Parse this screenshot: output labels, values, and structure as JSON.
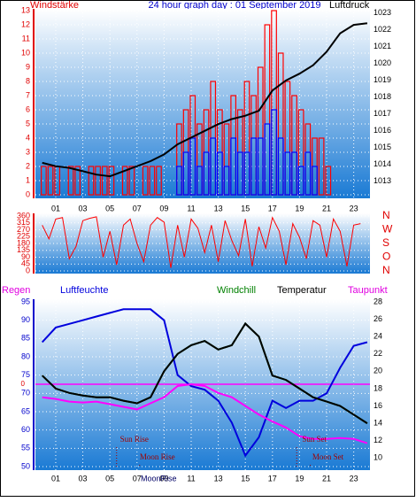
{
  "chart_data": [
    {
      "type": "bar_line",
      "title": "24 hour graph day : 01 September 2019",
      "ylabel": "Windstärke",
      "xlim": [
        -0.5,
        24.2
      ],
      "xticks": [
        {
          "value": 1,
          "label": "01"
        },
        {
          "value": 3,
          "label": "03"
        },
        {
          "value": 5,
          "label": "05"
        },
        {
          "value": 7,
          "label": "07"
        },
        {
          "value": 9,
          "label": "09"
        },
        {
          "value": 11,
          "label": "11"
        },
        {
          "value": 13,
          "label": "13"
        },
        {
          "value": 15,
          "label": "15"
        },
        {
          "value": 17,
          "label": "17"
        },
        {
          "value": 19,
          "label": "19"
        },
        {
          "value": 21,
          "label": "21"
        },
        {
          "value": 23,
          "label": "23"
        }
      ],
      "ylim": [
        0,
        13
      ],
      "yticks": [
        0,
        1,
        2,
        3,
        4,
        5,
        6,
        7,
        8,
        9,
        10,
        11,
        12,
        13
      ],
      "y2lim": [
        1012.2,
        1023.15
      ],
      "y2ticks": [
        1013,
        1014,
        1015,
        1016,
        1017,
        1018,
        1019,
        1020,
        1021,
        1022,
        1023
      ],
      "grid": true,
      "series": [
        {
          "color": "#ff0000",
          "style": "bar",
          "x": [
            0,
            0.5,
            1,
            1.5,
            2,
            2.5,
            3,
            3.5,
            4,
            4.5,
            5,
            5.5,
            6,
            6.5,
            7,
            7.5,
            8,
            8.5,
            9,
            9.5,
            10,
            10.5,
            11,
            11.5,
            12,
            12.5,
            13,
            13.5,
            14,
            14.5,
            15,
            15.5,
            16,
            16.5,
            17,
            17.5,
            18,
            18.5,
            19,
            19.5,
            20,
            20.5,
            21,
            21.5,
            22,
            22.5,
            23,
            23.5
          ],
          "values": [
            2,
            2,
            2,
            0,
            2,
            2,
            0,
            2,
            2,
            2,
            2,
            0,
            2,
            2,
            0,
            2,
            2,
            2,
            0,
            0,
            5,
            6,
            7,
            5,
            6,
            8,
            6,
            5,
            7,
            6,
            8,
            7,
            9,
            12,
            13,
            10,
            8,
            7,
            6,
            5,
            4,
            4,
            2,
            0,
            0,
            0,
            0,
            0
          ]
        },
        {
          "color": "#0000ff",
          "style": "bar",
          "x": [
            0,
            0.5,
            1,
            1.5,
            2,
            2.5,
            3,
            3.5,
            4,
            4.5,
            5,
            5.5,
            6,
            6.5,
            7,
            7.5,
            8,
            8.5,
            9,
            9.5,
            10,
            10.5,
            11,
            11.5,
            12,
            12.5,
            13,
            13.5,
            14,
            14.5,
            15,
            15.5,
            16,
            16.5,
            17,
            17.5,
            18,
            18.5,
            19,
            19.5,
            20,
            20.5,
            21,
            21.5,
            22,
            22.5,
            23,
            23.5
          ],
          "values": [
            0,
            0,
            0,
            0,
            0,
            0,
            0,
            0,
            0,
            0,
            0,
            0,
            0,
            0,
            0,
            0,
            0,
            0,
            0,
            0,
            2,
            3,
            4,
            2,
            3,
            4,
            3,
            2,
            4,
            3,
            3,
            4,
            4,
            5,
            6,
            4,
            3,
            3,
            2,
            3,
            2,
            0,
            0,
            0,
            0,
            0,
            0,
            0
          ]
        },
        {
          "name": "Luftdruck",
          "color": "#000000",
          "axis": "y2",
          "style": "line",
          "x": [
            0,
            1,
            2,
            3,
            4,
            5,
            6,
            7,
            8,
            9,
            10,
            11,
            12,
            13,
            14,
            15,
            16,
            17,
            18,
            19,
            20,
            21,
            22,
            23,
            24
          ],
          "values": [
            1014.1,
            1013.9,
            1013.8,
            1013.6,
            1013.4,
            1013.3,
            1013.6,
            1013.9,
            1014.2,
            1014.6,
            1015.2,
            1015.6,
            1016.0,
            1016.4,
            1016.7,
            1016.9,
            1017.2,
            1018.4,
            1019.0,
            1019.4,
            1019.9,
            1020.7,
            1021.8,
            1022.3,
            1022.4
          ]
        }
      ]
    },
    {
      "type": "line",
      "xlim": [
        -0.5,
        24.2
      ],
      "ylim": [
        0,
        360
      ],
      "yticks": [
        0,
        45,
        90,
        135,
        180,
        225,
        270,
        315,
        360
      ],
      "y2lim": [
        0,
        360
      ],
      "y2ticks": [
        {
          "value": 360,
          "label": "N"
        },
        {
          "value": 270,
          "label": "W"
        },
        {
          "value": 180,
          "label": "S"
        },
        {
          "value": 90,
          "label": "O"
        },
        {
          "value": 0,
          "label": "N"
        }
      ],
      "grid": true,
      "series": [
        {
          "color": "#ff0000",
          "style": "line",
          "x": [
            0,
            0.5,
            1,
            1.5,
            2,
            2.5,
            3,
            3.5,
            4,
            4.5,
            5,
            5.5,
            6,
            6.5,
            7,
            7.5,
            8,
            8.5,
            9,
            9.5,
            10,
            10.5,
            11,
            11.5,
            12,
            12.5,
            13,
            13.5,
            14,
            14.5,
            15,
            15.5,
            16,
            16.5,
            17,
            17.5,
            18,
            18.5,
            19,
            19.5,
            20,
            20.5,
            21,
            21.5,
            22,
            22.5,
            23,
            23.5
          ],
          "values": [
            300,
            210,
            340,
            350,
            80,
            160,
            330,
            345,
            355,
            90,
            260,
            40,
            300,
            340,
            180,
            60,
            300,
            350,
            320,
            20,
            300,
            90,
            340,
            280,
            120,
            300,
            60,
            330,
            200,
            100,
            340,
            30,
            290,
            150,
            350,
            260,
            40,
            310,
            220,
            80,
            330,
            300,
            90,
            340,
            260,
            30,
            300,
            310
          ]
        }
      ]
    },
    {
      "type": "line",
      "xlim": [
        -0.5,
        24.2
      ],
      "xticks": [
        {
          "value": 1,
          "label": "01"
        },
        {
          "value": 3,
          "label": "03"
        },
        {
          "value": 5,
          "label": "05"
        },
        {
          "value": 7,
          "label": "07"
        },
        {
          "value": 9,
          "label": "09"
        },
        {
          "value": 11,
          "label": "11"
        },
        {
          "value": 13,
          "label": "13"
        },
        {
          "value": 15,
          "label": "15"
        },
        {
          "value": 17,
          "label": "17"
        },
        {
          "value": 19,
          "label": "19"
        },
        {
          "value": 21,
          "label": "21"
        },
        {
          "value": 23,
          "label": "23"
        }
      ],
      "ylim": [
        50,
        95
      ],
      "yticks": [
        50,
        55,
        60,
        65,
        70,
        75,
        80,
        85,
        90,
        95
      ],
      "y2lim": [
        9,
        28
      ],
      "y2ticks": [
        10,
        12,
        14,
        16,
        18,
        20,
        22,
        24,
        26,
        28
      ],
      "y3lim": [
        -1,
        1
      ],
      "y3ticks": [
        0
      ],
      "grid": true,
      "series": [
        {
          "name": "Regen",
          "color": "#ff00ff",
          "axis": "y3",
          "style": "line",
          "x": [
            0,
            24
          ],
          "values": [
            0,
            0
          ]
        },
        {
          "name": "Luftfeuchte",
          "color": "#0000dd",
          "style": "line",
          "x": [
            0,
            1,
            2,
            3,
            4,
            5,
            6,
            7,
            8,
            9,
            10,
            11,
            12,
            13,
            14,
            15,
            16,
            17,
            18,
            19,
            20,
            21,
            22,
            23,
            24
          ],
          "values": [
            84,
            88,
            89,
            90,
            91,
            92,
            93,
            93,
            93,
            90,
            75,
            72,
            71,
            68,
            62,
            53,
            58,
            68,
            66,
            68,
            68,
            70,
            77,
            83,
            84
          ]
        },
        {
          "name": "Windchill",
          "color": "#008000",
          "axis": "y2",
          "style": "line",
          "x": [
            0,
            1,
            2,
            3,
            4,
            5,
            6,
            7,
            8,
            9,
            10,
            11,
            12,
            13,
            14,
            15,
            16,
            17,
            18,
            19,
            20,
            21,
            22,
            23,
            24
          ],
          "values": [
            19.5,
            18,
            17.5,
            17.2,
            17,
            17,
            16.6,
            16.3,
            17,
            20,
            22,
            23,
            23.5,
            22.5,
            23,
            25.5,
            24,
            19.5,
            19,
            18,
            17,
            16.5,
            16,
            15,
            14
          ]
        },
        {
          "name": "Temperatur",
          "color": "#000000",
          "axis": "y2",
          "style": "line",
          "x": [
            0,
            1,
            2,
            3,
            4,
            5,
            6,
            7,
            8,
            9,
            10,
            11,
            12,
            13,
            14,
            15,
            16,
            17,
            18,
            19,
            20,
            21,
            22,
            23,
            24
          ],
          "values": [
            19.5,
            18,
            17.5,
            17.2,
            17,
            17,
            16.6,
            16.3,
            17,
            20,
            22,
            23,
            23.5,
            22.5,
            23,
            25.5,
            24,
            19.5,
            19,
            18,
            17,
            16.5,
            16,
            15,
            14
          ]
        },
        {
          "name": "Taupunkt",
          "color": "#ff00ff",
          "axis": "y2",
          "style": "line",
          "x": [
            0,
            1,
            2,
            3,
            4,
            5,
            6,
            7,
            8,
            9,
            10,
            11,
            12,
            13,
            14,
            15,
            16,
            17,
            18,
            19,
            20,
            21,
            22,
            23,
            24
          ],
          "values": [
            17,
            16.8,
            16.5,
            16.4,
            16.5,
            16.2,
            15.9,
            15.6,
            16.3,
            17,
            18.3,
            18.5,
            18.3,
            17.5,
            17,
            16,
            15,
            14.2,
            13.5,
            12.5,
            12.2,
            12.2,
            12.3,
            12.2,
            11.7
          ]
        }
      ],
      "annotations": [
        {
          "text": "Sun Rise",
          "x": 6.8
        },
        {
          "text": "Moon Rise",
          "x": 8.5
        },
        {
          "text": "Sun Set",
          "x": 20.1
        },
        {
          "text": "Moon Set",
          "x": 21.1
        }
      ],
      "x_marker": {
        "text": "MoonRise",
        "x": 8.6
      }
    }
  ]
}
